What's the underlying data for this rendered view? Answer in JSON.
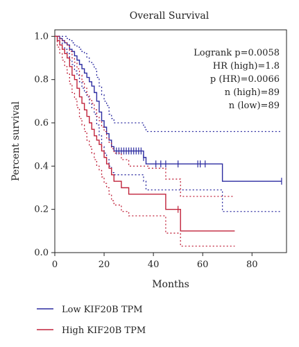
{
  "chart_data": {
    "type": "line",
    "subtype": "kaplan-meier",
    "title": "Overall Survival",
    "xlabel": "Months",
    "ylabel": "Percent survival",
    "xlim": [
      0,
      94
    ],
    "ylim": [
      0,
      1.03
    ],
    "x_ticks": [
      0,
      20,
      40,
      60,
      80
    ],
    "x_tick_labels": [
      "0",
      "20",
      "40",
      "60",
      "80"
    ],
    "y_ticks": [
      0.0,
      0.2,
      0.4,
      0.6,
      0.8,
      1.0
    ],
    "y_tick_labels": [
      "0.0",
      "0.2",
      "0.4",
      "0.6",
      "0.8",
      "1.0"
    ],
    "stats": [
      "Logrank p=0.0058",
      "HR (high)=1.8",
      "p (HR)=0.0066",
      "n (high)=89",
      "n (low)=89"
    ],
    "legend_position": "bottom",
    "colors": {
      "low": "#2b2ba0",
      "high": "#c0223a"
    },
    "series": [
      {
        "key": "low",
        "name": "Low KIF20B TPM",
        "color": "#2b2ba0",
        "x": [
          0,
          2,
          3,
          4,
          5,
          6,
          7,
          8,
          9,
          10,
          11,
          12,
          13,
          14,
          15,
          16,
          17,
          18,
          19,
          20,
          21,
          22,
          23,
          24,
          25,
          36,
          37,
          38,
          68,
          92
        ],
        "y": [
          1.0,
          0.99,
          0.98,
          0.97,
          0.96,
          0.94,
          0.93,
          0.91,
          0.89,
          0.87,
          0.85,
          0.83,
          0.81,
          0.79,
          0.77,
          0.74,
          0.7,
          0.65,
          0.61,
          0.58,
          0.55,
          0.52,
          0.49,
          0.47,
          0.47,
          0.44,
          0.41,
          0.41,
          0.33,
          0.33
        ],
        "upper": [
          1.0,
          1.0,
          1.0,
          1.0,
          0.99,
          0.98,
          0.97,
          0.96,
          0.95,
          0.94,
          0.93,
          0.92,
          0.9,
          0.88,
          0.87,
          0.85,
          0.81,
          0.77,
          0.73,
          0.7,
          0.68,
          0.64,
          0.62,
          0.6,
          0.6,
          0.58,
          0.56,
          0.56,
          0.56,
          0.56
        ],
        "lower": [
          1.0,
          0.97,
          0.95,
          0.94,
          0.92,
          0.89,
          0.87,
          0.84,
          0.82,
          0.79,
          0.76,
          0.74,
          0.72,
          0.69,
          0.67,
          0.64,
          0.59,
          0.54,
          0.49,
          0.46,
          0.43,
          0.4,
          0.37,
          0.36,
          0.36,
          0.33,
          0.29,
          0.29,
          0.19,
          0.19
        ],
        "censor_x": [
          25,
          26,
          27,
          28,
          29,
          30,
          31,
          32,
          33,
          34,
          35,
          36,
          41,
          43,
          45,
          50,
          58,
          59,
          61,
          92
        ],
        "censor_y": [
          0.47,
          0.47,
          0.47,
          0.47,
          0.47,
          0.47,
          0.47,
          0.47,
          0.47,
          0.47,
          0.47,
          0.44,
          0.41,
          0.41,
          0.41,
          0.41,
          0.41,
          0.41,
          0.41,
          0.33
        ]
      },
      {
        "key": "high",
        "name": "High KIF20B TPM",
        "color": "#c0223a",
        "x": [
          0,
          1,
          2,
          3,
          4,
          5,
          6,
          7,
          8,
          9,
          10,
          11,
          12,
          13,
          14,
          15,
          16,
          17,
          18,
          19,
          20,
          21,
          22,
          23,
          24,
          27,
          30,
          38,
          45,
          51,
          73
        ],
        "y": [
          1.0,
          0.98,
          0.96,
          0.94,
          0.92,
          0.9,
          0.86,
          0.82,
          0.8,
          0.76,
          0.72,
          0.69,
          0.66,
          0.63,
          0.6,
          0.57,
          0.54,
          0.52,
          0.5,
          0.47,
          0.44,
          0.41,
          0.39,
          0.36,
          0.33,
          0.3,
          0.27,
          0.27,
          0.2,
          0.1,
          0.1
        ],
        "upper": [
          1.0,
          1.0,
          0.99,
          0.98,
          0.97,
          0.96,
          0.93,
          0.9,
          0.88,
          0.85,
          0.82,
          0.79,
          0.76,
          0.73,
          0.71,
          0.69,
          0.66,
          0.63,
          0.61,
          0.58,
          0.56,
          0.53,
          0.51,
          0.48,
          0.46,
          0.43,
          0.4,
          0.39,
          0.34,
          0.26,
          0.26
        ],
        "lower": [
          1.0,
          0.95,
          0.92,
          0.89,
          0.86,
          0.83,
          0.78,
          0.74,
          0.71,
          0.67,
          0.62,
          0.59,
          0.56,
          0.52,
          0.49,
          0.46,
          0.43,
          0.4,
          0.38,
          0.35,
          0.32,
          0.3,
          0.27,
          0.24,
          0.22,
          0.19,
          0.17,
          0.17,
          0.09,
          0.03,
          0.03
        ],
        "censor_x": [
          50
        ],
        "censor_y": [
          0.2
        ]
      }
    ]
  }
}
